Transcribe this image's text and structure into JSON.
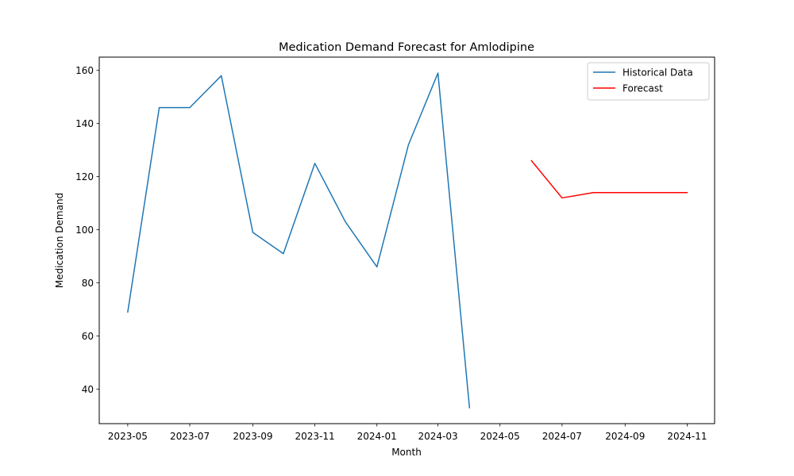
{
  "chart_data": {
    "type": "line",
    "title": "Medication Demand Forecast for Amlodipine",
    "xlabel": "Month",
    "ylabel": "Medication Demand",
    "xlim": [
      "2023-04-03",
      "2024-11-28"
    ],
    "ylim": [
      27,
      165
    ],
    "x_ticks": [
      "2023-05",
      "2023-07",
      "2023-09",
      "2023-11",
      "2024-01",
      "2024-03",
      "2024-05",
      "2024-07",
      "2024-09",
      "2024-11"
    ],
    "y_ticks": [
      40,
      60,
      80,
      100,
      120,
      140,
      160
    ],
    "grid": false,
    "legend_position": "top-right",
    "series": [
      {
        "name": "Historical Data",
        "color": "#1f77b4",
        "x": [
          "2023-05-01",
          "2023-06-01",
          "2023-07-01",
          "2023-08-01",
          "2023-09-01",
          "2023-10-01",
          "2023-11-01",
          "2023-12-01",
          "2024-01-01",
          "2024-02-01",
          "2024-03-01",
          "2024-04-01"
        ],
        "values": [
          69,
          146,
          146,
          158,
          99,
          91,
          125,
          103,
          86,
          132,
          159,
          33
        ]
      },
      {
        "name": "Forecast",
        "color": "#ff0000",
        "x": [
          "2024-06-01",
          "2024-07-01",
          "2024-08-01",
          "2024-09-01",
          "2024-10-01",
          "2024-11-01"
        ],
        "values": [
          126,
          112,
          114,
          114,
          114,
          114
        ]
      }
    ]
  }
}
